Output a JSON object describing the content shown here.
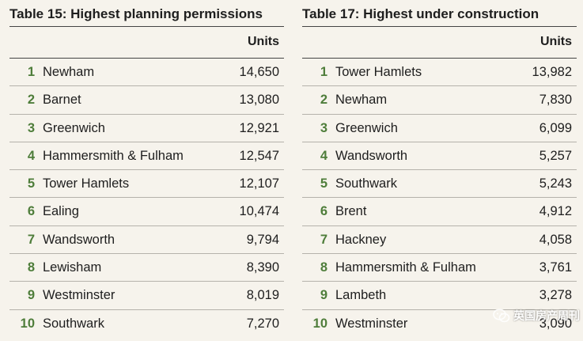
{
  "tables": [
    {
      "title": "Table 15: Highest planning permissions",
      "units_header": "Units",
      "rows": [
        {
          "rank": "1",
          "name": "Newham",
          "units": "14,650"
        },
        {
          "rank": "2",
          "name": "Barnet",
          "units": "13,080"
        },
        {
          "rank": "3",
          "name": "Greenwich",
          "units": "12,921"
        },
        {
          "rank": "4",
          "name": "Hammersmith & Fulham",
          "units": "12,547"
        },
        {
          "rank": "5",
          "name": "Tower Hamlets",
          "units": "12,107"
        },
        {
          "rank": "6",
          "name": "Ealing",
          "units": "10,474"
        },
        {
          "rank": "7",
          "name": "Wandsworth",
          "units": "9,794"
        },
        {
          "rank": "8",
          "name": "Lewisham",
          "units": "8,390"
        },
        {
          "rank": "9",
          "name": "Westminster",
          "units": "8,019"
        },
        {
          "rank": "10",
          "name": "Southwark",
          "units": "7,270"
        }
      ]
    },
    {
      "title": "Table 17: Highest under construction",
      "units_header": "Units",
      "rows": [
        {
          "rank": "1",
          "name": "Tower Hamlets",
          "units": "13,982"
        },
        {
          "rank": "2",
          "name": "Newham",
          "units": "7,830"
        },
        {
          "rank": "3",
          "name": "Greenwich",
          "units": "6,099"
        },
        {
          "rank": "4",
          "name": "Wandsworth",
          "units": "5,257"
        },
        {
          "rank": "5",
          "name": "Southwark",
          "units": "5,243"
        },
        {
          "rank": "6",
          "name": "Brent",
          "units": "4,912"
        },
        {
          "rank": "7",
          "name": "Hackney",
          "units": "4,058"
        },
        {
          "rank": "8",
          "name": "Hammersmith & Fulham",
          "units": "3,761"
        },
        {
          "rank": "9",
          "name": "Lambeth",
          "units": "3,278"
        },
        {
          "rank": "10",
          "name": "Westminster",
          "units": "3,090"
        }
      ]
    }
  ],
  "watermark": {
    "text": "英国房产周刊",
    "icon": "wechat-icon"
  },
  "colors": {
    "background": "#f6f3ec",
    "rank": "#4e7d3a",
    "text": "#1e1e1e"
  }
}
